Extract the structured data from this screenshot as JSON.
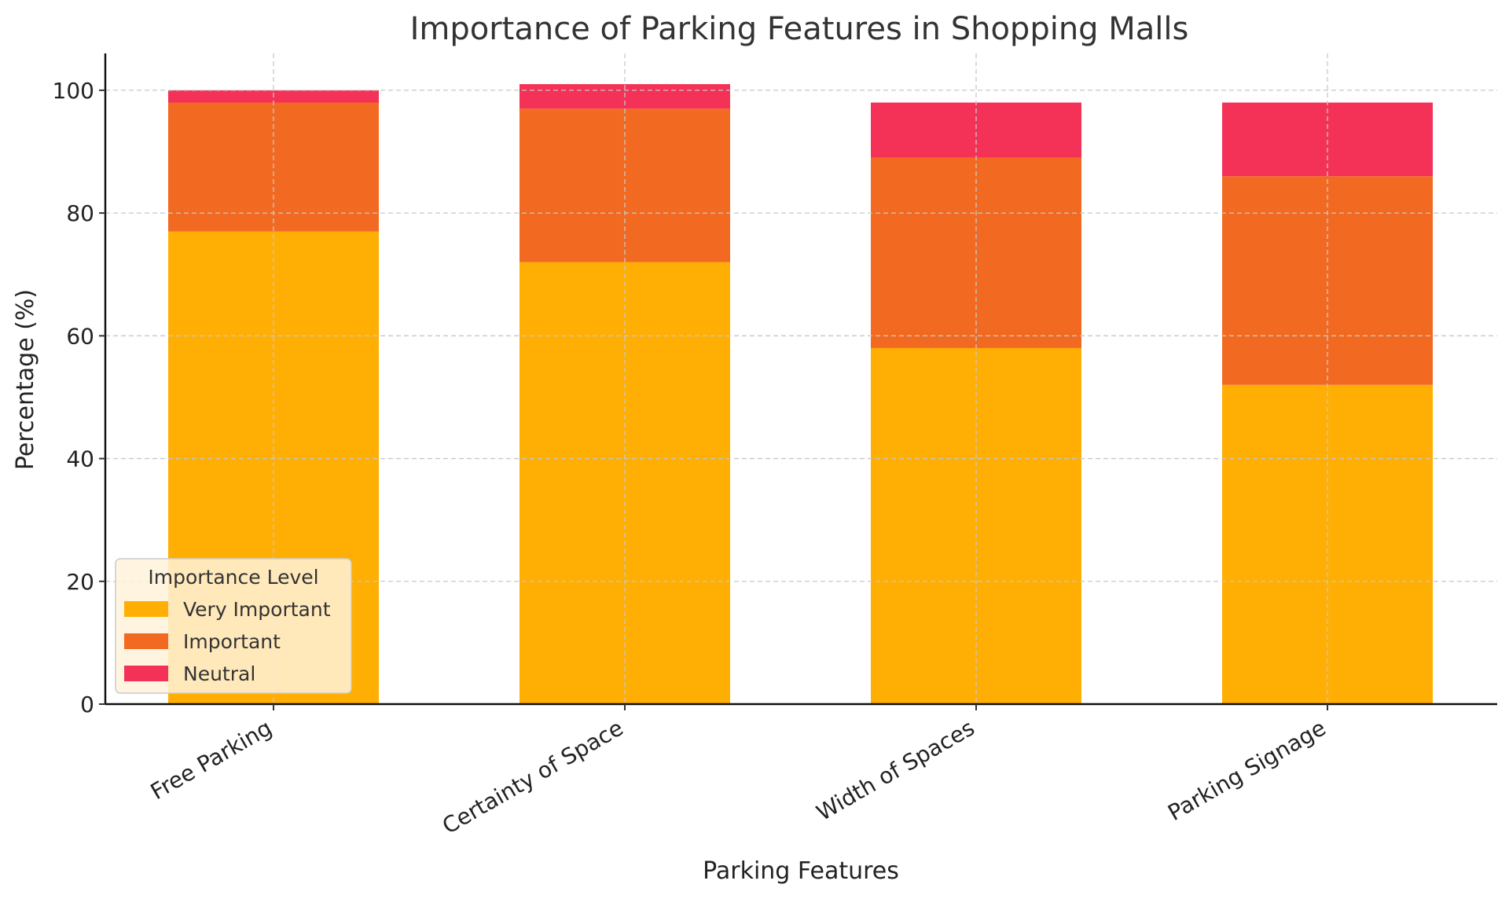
{
  "chart_data": {
    "type": "bar",
    "stacked": true,
    "title": "Importance of Parking Features in Shopping Malls",
    "xlabel": "Parking Features",
    "ylabel": "Percentage (%)",
    "categories": [
      "Free Parking",
      "Certainty of Space",
      "Width of Spaces",
      "Parking Signage"
    ],
    "series": [
      {
        "name": "Very Important",
        "color": "#FFAE03",
        "values": [
          77,
          72,
          58,
          52
        ]
      },
      {
        "name": "Important",
        "color": "#F26A21",
        "values": [
          21,
          25,
          31,
          34
        ]
      },
      {
        "name": "Neutral",
        "color": "#F43157",
        "values": [
          2,
          4,
          9,
          12
        ]
      }
    ],
    "ylim": [
      0,
      106
    ],
    "yticks": [
      0,
      20,
      40,
      60,
      80,
      100
    ],
    "grid": true,
    "legend": {
      "title": "Importance Level",
      "placement": "lower-left"
    }
  }
}
